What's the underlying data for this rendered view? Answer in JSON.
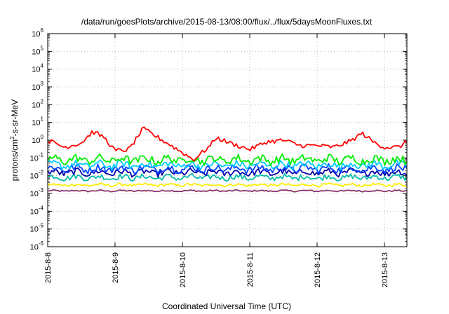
{
  "chart_data": {
    "type": "line",
    "title": "/data/run/goesPlots/archive/2015-08-13/08:00/flux/../flux/5daysMoonFluxes.txt",
    "xlabel": "Coordinated Universal Time (UTC)",
    "ylabel_parts": [
      "protons/cm",
      "2",
      "-s-sr-MeV"
    ],
    "y_scale": "log",
    "ylim": [
      1e-06,
      1000000.0
    ],
    "y_ticks": [
      {
        "exp": "-6",
        "value": 1e-06
      },
      {
        "exp": "-5",
        "value": 1e-05
      },
      {
        "exp": "-4",
        "value": 0.0001
      },
      {
        "exp": "-3",
        "value": 0.001
      },
      {
        "exp": "-2",
        "value": 0.01
      },
      {
        "exp": "-1",
        "value": 0.1
      },
      {
        "exp": "0",
        "value": 1
      },
      {
        "exp": "1",
        "value": 10
      },
      {
        "exp": "2",
        "value": 100
      },
      {
        "exp": "3",
        "value": 1000
      },
      {
        "exp": "4",
        "value": 10000
      },
      {
        "exp": "5",
        "value": 100000
      },
      {
        "exp": "6",
        "value": 1000000
      }
    ],
    "x_ticks": [
      "2015-8-8",
      "2015-8-9",
      "2015-8-10",
      "2015-8-11",
      "2015-8-12",
      "2015-8-13"
    ],
    "xlim": [
      "2015-08-08 00:00",
      "2015-08-13 08:00"
    ],
    "grid": true,
    "series": [
      {
        "color": "#ff0000",
        "values": [
          {
            "t": "2015-08-08 00:00",
            "y": 1.0
          },
          {
            "t": "2015-08-08 06:00",
            "y": 0.4
          },
          {
            "t": "2015-08-08 12:00",
            "y": 0.7
          },
          {
            "t": "2015-08-08 16:00",
            "y": 3.0
          },
          {
            "t": "2015-08-08 20:00",
            "y": 1.5
          },
          {
            "t": "2015-08-09 00:00",
            "y": 0.25
          },
          {
            "t": "2015-08-09 05:00",
            "y": 0.3
          },
          {
            "t": "2015-08-09 10:00",
            "y": 4.5
          },
          {
            "t": "2015-08-09 16:00",
            "y": 1.2
          },
          {
            "t": "2015-08-09 20:00",
            "y": 0.5
          },
          {
            "t": "2015-08-10 00:00",
            "y": 0.2
          },
          {
            "t": "2015-08-10 04:00",
            "y": 0.08
          },
          {
            "t": "2015-08-10 10:00",
            "y": 0.5
          },
          {
            "t": "2015-08-10 12:00",
            "y": 1.4
          },
          {
            "t": "2015-08-10 18:00",
            "y": 0.6
          },
          {
            "t": "2015-08-11 00:00",
            "y": 0.3
          },
          {
            "t": "2015-08-11 06:00",
            "y": 0.8
          },
          {
            "t": "2015-08-11 12:00",
            "y": 1.0
          },
          {
            "t": "2015-08-11 18:00",
            "y": 0.5
          },
          {
            "t": "2015-08-12 00:00",
            "y": 0.5
          },
          {
            "t": "2015-08-12 06:00",
            "y": 0.4
          },
          {
            "t": "2015-08-12 12:00",
            "y": 0.9
          },
          {
            "t": "2015-08-12 16:00",
            "y": 2.5
          },
          {
            "t": "2015-08-12 20:00",
            "y": 0.8
          },
          {
            "t": "2015-08-13 00:00",
            "y": 0.4
          },
          {
            "t": "2015-08-13 05:00",
            "y": 0.4
          },
          {
            "t": "2015-08-13 08:00",
            "y": 0.8
          }
        ]
      },
      {
        "color": "#00ee00",
        "level": 0.08,
        "spread": 0.45
      },
      {
        "color": "#00ccff",
        "level": 0.04,
        "spread": 0.4
      },
      {
        "color": "#0044ff",
        "level": 0.025,
        "spread": 0.4
      },
      {
        "color": "#0000aa",
        "level": 0.015,
        "spread": 0.35
      },
      {
        "color": "#00bbaa",
        "level": 0.008,
        "spread": 0.3
      },
      {
        "color": "#ffee00",
        "level": 0.003,
        "spread": 0.15
      },
      {
        "color": "#883366",
        "level": 0.0014,
        "spread": 0.08
      }
    ]
  }
}
